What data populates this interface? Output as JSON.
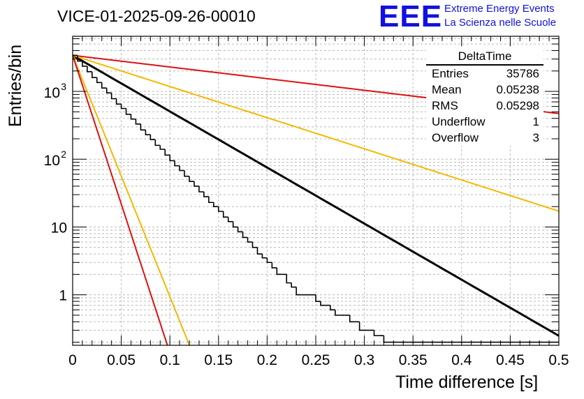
{
  "chart_data": {
    "type": "histogram",
    "title": "VICE-01-2025-09-26-00010",
    "xlabel": "Time difference [s]",
    "ylabel": "Entries/bin",
    "xlim": [
      0,
      0.5
    ],
    "ylim_log": [
      0.18,
      6500
    ],
    "yscale": "log",
    "grid": true,
    "x_tick_labels": [
      "0",
      "0.05",
      "0.1",
      "0.15",
      "0.2",
      "0.25",
      "0.3",
      "0.35",
      "0.4",
      "0.45",
      "0.5"
    ],
    "x_ticks": [
      0,
      0.05,
      0.1,
      0.15,
      0.2,
      0.25,
      0.3,
      0.35,
      0.4,
      0.45,
      0.5
    ],
    "y_ticks": [
      1,
      10,
      100,
      1000
    ],
    "y_tick_labels": [
      {
        "base": "1",
        "exp": ""
      },
      {
        "base": "10",
        "exp": ""
      },
      {
        "base": "10",
        "exp": "2"
      },
      {
        "base": "10",
        "exp": "3"
      }
    ],
    "histogram": {
      "name": "DeltaTime",
      "bin_width": 0.005,
      "counts": [
        3400,
        2800,
        2350,
        1950,
        1600,
        1350,
        1120,
        950,
        780,
        650,
        560,
        460,
        390,
        330,
        270,
        230,
        195,
        160,
        140,
        115,
        95,
        80,
        68,
        56,
        47,
        40,
        33,
        28,
        23,
        20,
        17,
        14,
        12,
        10,
        8.5,
        7,
        6,
        5,
        4,
        3.5,
        3,
        2.5,
        2,
        2,
        1.5,
        1.3,
        1,
        1,
        1,
        1,
        0.8,
        0.7,
        0.7,
        0.6,
        0.5,
        0.5,
        0.5,
        0.4,
        0.4,
        0.3,
        0.3,
        0.3,
        0.25,
        0.25,
        0.2,
        0.2,
        0.2,
        0.2,
        0.2,
        0.2,
        0.2,
        0.2,
        0.2,
        0.2,
        0.2,
        0.2,
        0.2,
        0.2,
        0.2,
        0.2,
        0.2,
        0.2,
        0.2,
        0.2,
        0.2,
        0.2,
        0.2,
        0.2,
        0.2,
        0.2,
        0.2,
        0.2,
        0.2,
        0.2,
        0.2,
        0.2,
        0.2,
        0.2,
        0.2,
        0.2
      ],
      "color": "#000000"
    },
    "fits": [
      {
        "name": "fit",
        "color": "#000000",
        "width": 3,
        "A": 3400,
        "tau": 0.0525
      },
      {
        "name": "red-slow",
        "color": "#dd1111",
        "width": 2,
        "A": 3400,
        "tau": 0.253
      },
      {
        "name": "orange-slow",
        "color": "#f5b800",
        "width": 2,
        "A": 3400,
        "tau": 0.0945
      },
      {
        "name": "orange-fast",
        "color": "#f5b800",
        "width": 2,
        "A": 3400,
        "tau": 0.0122
      },
      {
        "name": "red-fast",
        "color": "#dd1111",
        "width": 2,
        "A": 3400,
        "tau": 0.0099
      }
    ]
  },
  "header": {
    "run_title": "VICE-01-2025-09-26-00010",
    "logo_text": "EEE",
    "brand_line1": "Extreme Energy Events",
    "brand_line2": "La Scienza nelle Scuole"
  },
  "axes": {
    "x_label": "Time difference [s]",
    "y_label": "Entries/bin"
  },
  "stats_box": {
    "title": "DeltaTime",
    "rows": [
      {
        "label": "Entries",
        "value": "35786"
      },
      {
        "label": "Mean",
        "value": "0.05238"
      },
      {
        "label": "RMS",
        "value": "0.05298"
      },
      {
        "label": "Underflow",
        "value": "1"
      },
      {
        "label": "Overflow",
        "value": "3"
      }
    ]
  },
  "colors": {
    "accent_blue": "#1010e0",
    "red": "#dd1111",
    "orange": "#f5b800"
  }
}
